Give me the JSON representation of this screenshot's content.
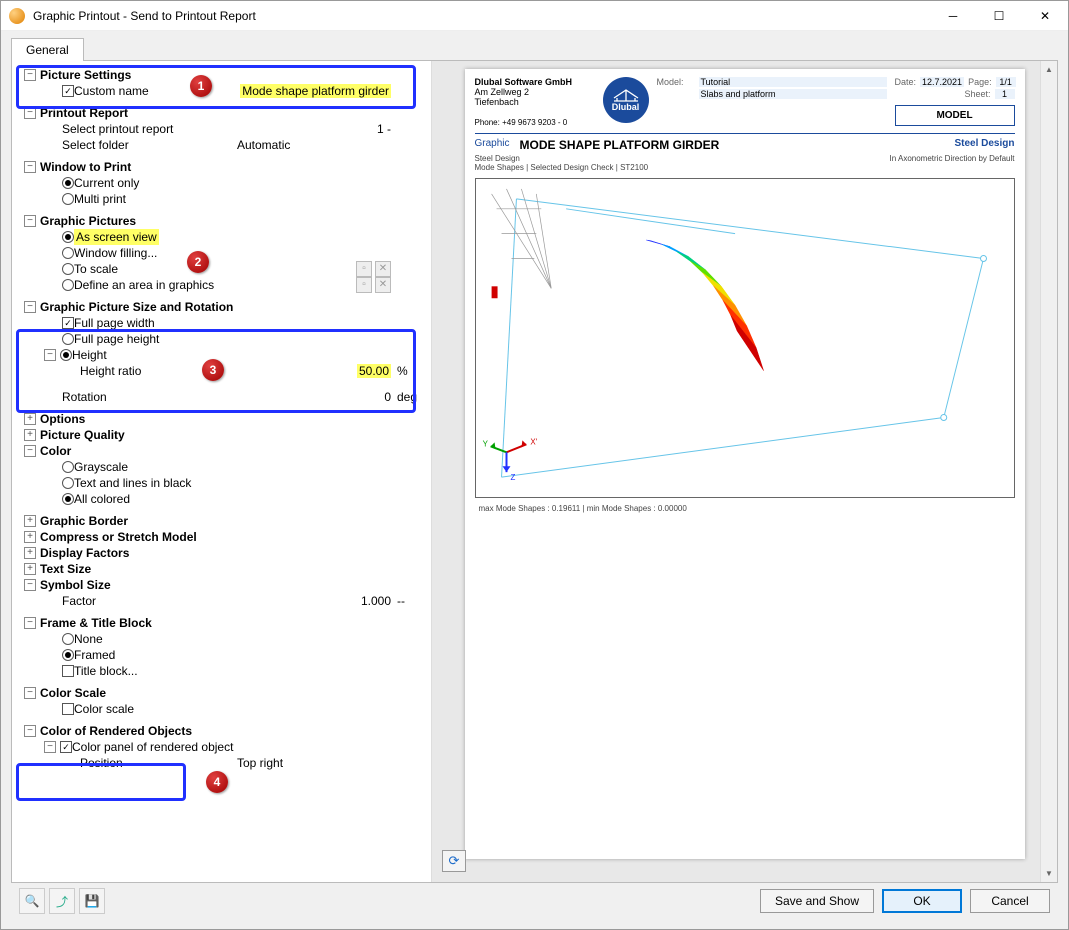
{
  "window": {
    "title": "Graphic Printout - Send to Printout Report"
  },
  "tabs": {
    "general": "General"
  },
  "tree": {
    "picture_settings": {
      "label": "Picture Settings",
      "custom_name": {
        "label": "Custom name",
        "checked": true,
        "value": "Mode shape platform girder"
      }
    },
    "printout_report": {
      "label": "Printout Report",
      "select_report": {
        "label": "Select printout report",
        "value": "1 -"
      },
      "select_folder": {
        "label": "Select folder",
        "value": "Automatic"
      }
    },
    "window_to_print": {
      "label": "Window to Print",
      "current_only": {
        "label": "Current only",
        "selected": true
      },
      "multi_print": {
        "label": "Multi print",
        "selected": false
      }
    },
    "graphic_pictures": {
      "label": "Graphic Pictures",
      "as_screen_view": {
        "label": "As screen view",
        "selected": true
      },
      "window_filling": {
        "label": "Window filling...",
        "selected": false
      },
      "to_scale": {
        "label": "To scale",
        "selected": false
      },
      "define_area": {
        "label": "Define an area in graphics",
        "selected": false
      }
    },
    "size_rotation": {
      "label": "Graphic Picture Size and Rotation",
      "full_page_width": {
        "label": "Full page width",
        "checked": true
      },
      "full_page_height": {
        "label": "Full page height",
        "selected": false
      },
      "height": {
        "label": "Height",
        "selected": true
      },
      "height_ratio": {
        "label": "Height ratio",
        "value": "50.00",
        "unit": "%"
      },
      "rotation": {
        "label": "Rotation",
        "value": "0",
        "unit": "deg"
      }
    },
    "options": {
      "label": "Options"
    },
    "picture_quality": {
      "label": "Picture Quality"
    },
    "color": {
      "label": "Color",
      "grayscale": {
        "label": "Grayscale",
        "selected": false
      },
      "text_lines_black": {
        "label": "Text and lines in black",
        "selected": false
      },
      "all_colored": {
        "label": "All colored",
        "selected": true
      }
    },
    "graphic_border": {
      "label": "Graphic Border"
    },
    "compress_stretch": {
      "label": "Compress or Stretch Model"
    },
    "display_factors": {
      "label": "Display Factors"
    },
    "text_size": {
      "label": "Text Size"
    },
    "symbol_size": {
      "label": "Symbol Size",
      "factor": {
        "label": "Factor",
        "value": "1.000",
        "unit": "--"
      }
    },
    "frame_title": {
      "label": "Frame & Title Block",
      "none": {
        "label": "None",
        "selected": false
      },
      "framed": {
        "label": "Framed",
        "selected": true
      },
      "title_block": {
        "label": "Title block...",
        "checked": false
      }
    },
    "color_scale": {
      "label": "Color Scale",
      "color_scale": {
        "label": "Color scale",
        "checked": false
      }
    },
    "rendered_objects": {
      "label": "Color of Rendered Objects",
      "color_panel": {
        "label": "Color panel of rendered object",
        "checked": true
      },
      "position": {
        "label": "Position",
        "value": "Top right"
      }
    }
  },
  "badges": {
    "b1": "1",
    "b2": "2",
    "b3": "3",
    "b4": "4"
  },
  "preview": {
    "company": "Dlubal Software GmbH",
    "addr1": "Am Zellweg 2",
    "addr2": "Tiefenbach",
    "phone": "Phone: +49 9673 9203 - 0",
    "model_k": "Model:",
    "model_v": "Tutorial",
    "project_v": "Slabs and platform",
    "date_k": "Date:",
    "date_v": "12.7.2021",
    "page_k": "Page:",
    "page_v": "1/1",
    "sheet_k": "Sheet:",
    "sheet_v": "1",
    "modelbox": "MODEL",
    "logo": "Dlubal",
    "graphic_tag": "Graphic",
    "title_main": "MODE SHAPE PLATFORM GIRDER",
    "title_right": "Steel Design",
    "sub_left": "Steel Design",
    "sub_left2": "Mode Shapes | Selected Design Check | ST2100",
    "sub_right": "In Axonometric Direction by Default",
    "footer": "max Mode Shapes : 0.19611 | min Mode Shapes : 0.00000",
    "axis_labels": {
      "x": "X'",
      "y": "Y",
      "z": "Z"
    },
    "shape_colors": [
      "#2030ff",
      "#00a0ff",
      "#00d080",
      "#60e000",
      "#f0e000",
      "#ff9000",
      "#ff3000",
      "#d00000"
    ]
  },
  "buttons": {
    "save_show": "Save and Show",
    "ok": "OK",
    "cancel": "Cancel"
  }
}
